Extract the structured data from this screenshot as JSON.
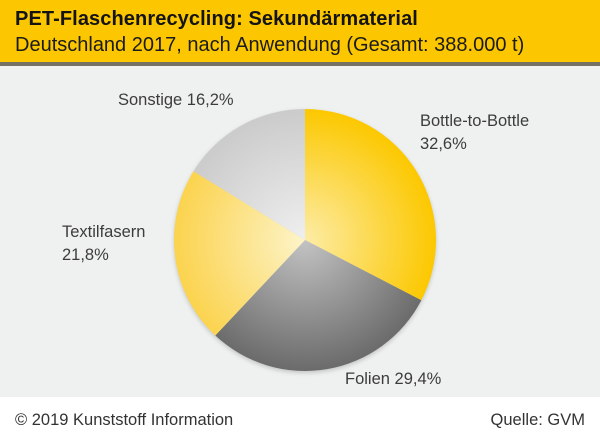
{
  "header": {
    "title": "PET-Flaschenrecycling: Sekundärmaterial",
    "subtitle": "Deutschland 2017, nach Anwendung (Gesamt: 388.000 t)",
    "background_color": "#fcc700"
  },
  "chart_data": {
    "type": "pie",
    "title": "PET-Flaschenrecycling: Sekundärmaterial",
    "subtitle": "Deutschland 2017, nach Anwendung (Gesamt: 388.000 t)",
    "total_label": "Gesamt: 388.000 t",
    "total_tonnes": 388000,
    "year": "2017",
    "region": "Deutschland",
    "unit": "%",
    "start_angle_deg": 0,
    "direction": "clockwise",
    "legend_position": "outside-labels",
    "slices": [
      {
        "label": "Bottle-to-Bottle",
        "value": 32.6,
        "display": "32,6%",
        "color_edge": "#fcc800",
        "color_center": "#fdeca6"
      },
      {
        "label": "Folien",
        "value": 29.4,
        "display": "29,4%",
        "color_edge": "#6b6b6b",
        "color_center": "#c3c3c3"
      },
      {
        "label": "Textilfasern",
        "value": 21.8,
        "display": "21,8%",
        "color_edge": "#fbd34e",
        "color_center": "#fdf4c9"
      },
      {
        "label": "Sonstige",
        "value": 16.2,
        "display": "16,2%",
        "color_edge": "#cbcbcb",
        "color_center": "#efefef"
      }
    ]
  },
  "labels": {
    "sonstige": "Sonstige 16,2%",
    "bottle_line1": "Bottle-to-Bottle",
    "bottle_line2": "32,6%",
    "textil_line1": "Textilfasern",
    "textil_line2": "21,8%",
    "folien": "Folien 29,4%"
  },
  "footer": {
    "copyright": "© 2019 Kunststoff Information",
    "source": "Quelle: GVM"
  },
  "colors": {
    "chart_background": "#eff1f0",
    "separator": "#757163",
    "label_text": "#3c3c3c"
  }
}
